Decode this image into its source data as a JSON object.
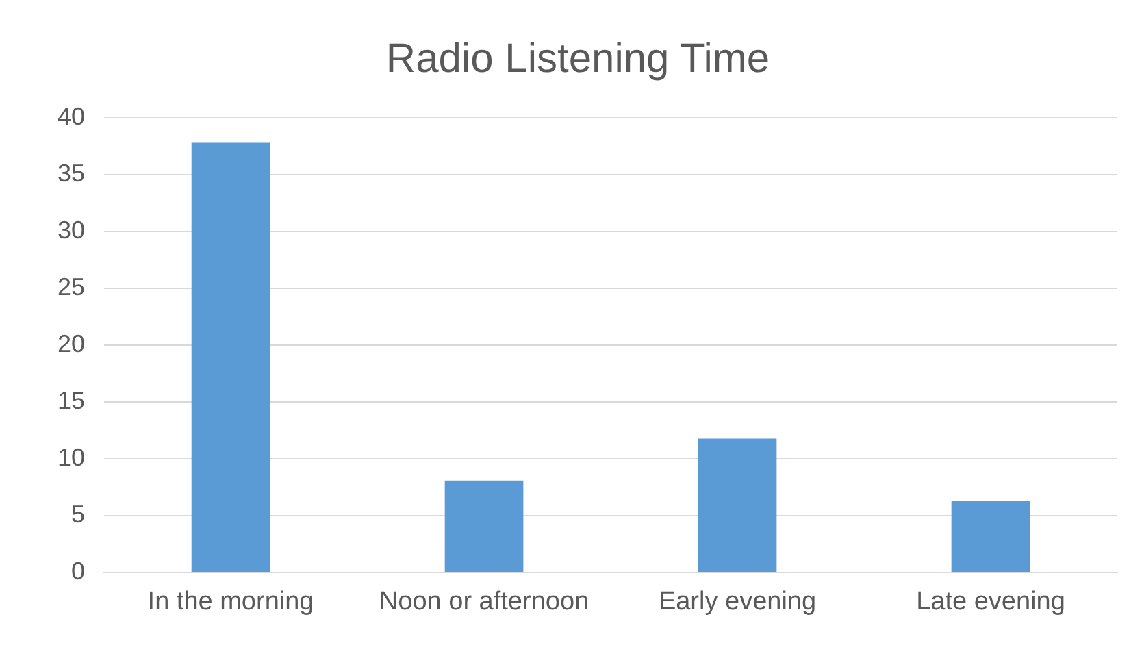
{
  "chart_data": {
    "type": "bar",
    "title": "Radio Listening Time",
    "categories": [
      "In the morning",
      "Noon or afternoon",
      "Early evening",
      "Late evening"
    ],
    "values": [
      37.8,
      8.1,
      11.8,
      6.3
    ],
    "color": "#5b9bd5",
    "ylim": [
      0,
      40
    ],
    "yticks": [
      0,
      5,
      10,
      15,
      20,
      25,
      30,
      35,
      40
    ],
    "grid": "y",
    "legend": false
  }
}
